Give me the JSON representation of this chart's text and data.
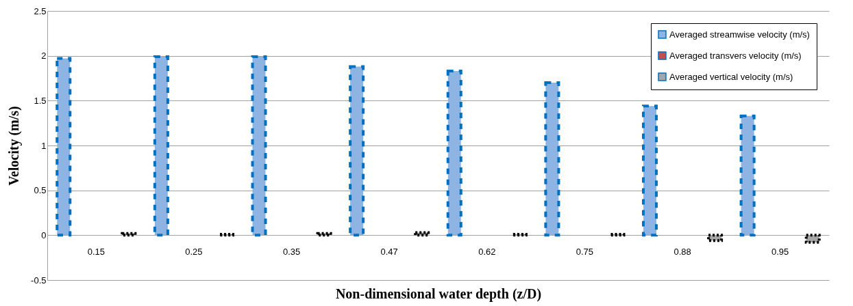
{
  "chart_data": {
    "type": "bar",
    "xlabel": "Non-dimensional water depth (z/D)",
    "ylabel": "Velocity (m/s)",
    "categories": [
      "0.15",
      "0.25",
      "0.35",
      "0.47",
      "0.62",
      "0.75",
      "0.88",
      "0.95"
    ],
    "series": [
      {
        "name": "Averaged streamwise velocity (m/s)",
        "color": "#8eb4e3",
        "values": [
          1.97,
          1.99,
          1.99,
          1.88,
          1.83,
          1.7,
          1.44,
          1.33
        ]
      },
      {
        "name": "Averaged transvers velocity (m/s)",
        "color": "#c0504d",
        "values": [
          0,
          0,
          0,
          0,
          0,
          0,
          0,
          0
        ]
      },
      {
        "name": "Averaged vertical velocity (m/s)",
        "color": "#a6a6a6",
        "values": [
          0.02,
          0.01,
          0.02,
          0.03,
          0.01,
          0.01,
          -0.06,
          -0.08
        ]
      }
    ],
    "ylim": [
      -0.5,
      2.5
    ],
    "yticks": [
      -0.5,
      0,
      0.5,
      1,
      1.5,
      2,
      2.5
    ],
    "grid": "y",
    "legend": "top right"
  }
}
